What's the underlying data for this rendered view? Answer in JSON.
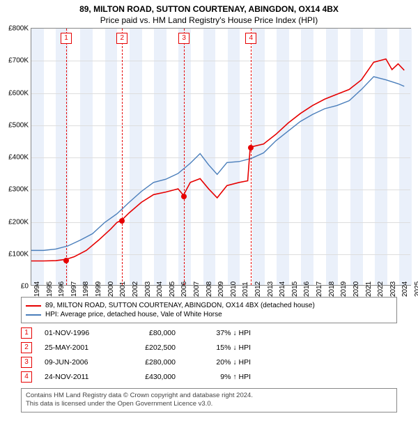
{
  "title_line1": "89, MILTON ROAD, SUTTON COURTENAY, ABINGDON, OX14 4BX",
  "title_line2": "Price paid vs. HM Land Registry's House Price Index (HPI)",
  "chart": {
    "type": "line",
    "xlim": [
      1994,
      2025
    ],
    "ylim": [
      0,
      800000
    ],
    "ytick_step": 100000,
    "yticks": [
      "£0",
      "£100K",
      "£200K",
      "£300K",
      "£400K",
      "£500K",
      "£600K",
      "£700K",
      "£800K"
    ],
    "xticks": [
      1994,
      1995,
      1996,
      1997,
      1998,
      1999,
      2000,
      2001,
      2002,
      2003,
      2004,
      2005,
      2006,
      2007,
      2008,
      2009,
      2010,
      2011,
      2012,
      2013,
      2014,
      2015,
      2016,
      2017,
      2018,
      2019,
      2020,
      2021,
      2022,
      2023,
      2024,
      2025
    ],
    "background_color": "#ffffff",
    "grid_color": "#dddddd",
    "band_color": "#eaf0fa",
    "bands": [
      [
        1994,
        1995
      ],
      [
        1996,
        1997
      ],
      [
        1998,
        1999
      ],
      [
        2000,
        2001
      ],
      [
        2002,
        2003
      ],
      [
        2004,
        2005
      ],
      [
        2006,
        2007
      ],
      [
        2008,
        2009
      ],
      [
        2010,
        2011
      ],
      [
        2012,
        2013
      ],
      [
        2014,
        2015
      ],
      [
        2016,
        2017
      ],
      [
        2018,
        2019
      ],
      [
        2020,
        2021
      ],
      [
        2022,
        2023
      ],
      [
        2024,
        2025
      ]
    ],
    "series": {
      "property": {
        "color": "#e60000",
        "width": 1.6,
        "data": [
          [
            1994.0,
            75000
          ],
          [
            1995.0,
            75000
          ],
          [
            1996.0,
            76000
          ],
          [
            1996.84,
            80000
          ],
          [
            1997.5,
            88000
          ],
          [
            1998.5,
            108000
          ],
          [
            1999.5,
            140000
          ],
          [
            2000.5,
            175000
          ],
          [
            2001.0,
            195000
          ],
          [
            2001.4,
            202500
          ],
          [
            2002.0,
            225000
          ],
          [
            2003.0,
            258000
          ],
          [
            2004.0,
            282000
          ],
          [
            2005.0,
            290000
          ],
          [
            2006.0,
            300000
          ],
          [
            2006.44,
            280000
          ],
          [
            2007.0,
            320000
          ],
          [
            2007.8,
            332000
          ],
          [
            2008.5,
            300000
          ],
          [
            2009.2,
            272000
          ],
          [
            2010.0,
            310000
          ],
          [
            2011.0,
            320000
          ],
          [
            2011.7,
            325000
          ],
          [
            2011.9,
            430000
          ],
          [
            2013.0,
            440000
          ],
          [
            2014.0,
            470000
          ],
          [
            2015.0,
            505000
          ],
          [
            2016.0,
            535000
          ],
          [
            2017.0,
            560000
          ],
          [
            2018.0,
            580000
          ],
          [
            2019.0,
            595000
          ],
          [
            2020.0,
            610000
          ],
          [
            2021.0,
            640000
          ],
          [
            2022.0,
            695000
          ],
          [
            2023.0,
            705000
          ],
          [
            2023.5,
            672000
          ],
          [
            2024.0,
            690000
          ],
          [
            2024.5,
            670000
          ]
        ]
      },
      "hpi": {
        "color": "#4a7ebb",
        "width": 1.4,
        "data": [
          [
            1994.0,
            108000
          ],
          [
            1995.0,
            108000
          ],
          [
            1996.0,
            112000
          ],
          [
            1997.0,
            122000
          ],
          [
            1998.0,
            140000
          ],
          [
            1999.0,
            160000
          ],
          [
            2000.0,
            195000
          ],
          [
            2001.0,
            222000
          ],
          [
            2002.0,
            258000
          ],
          [
            2003.0,
            292000
          ],
          [
            2004.0,
            320000
          ],
          [
            2005.0,
            330000
          ],
          [
            2006.0,
            348000
          ],
          [
            2007.0,
            380000
          ],
          [
            2007.8,
            410000
          ],
          [
            2008.5,
            375000
          ],
          [
            2009.2,
            345000
          ],
          [
            2010.0,
            382000
          ],
          [
            2011.0,
            385000
          ],
          [
            2012.0,
            395000
          ],
          [
            2013.0,
            412000
          ],
          [
            2014.0,
            450000
          ],
          [
            2015.0,
            480000
          ],
          [
            2016.0,
            510000
          ],
          [
            2017.0,
            532000
          ],
          [
            2018.0,
            550000
          ],
          [
            2019.0,
            560000
          ],
          [
            2020.0,
            575000
          ],
          [
            2021.0,
            610000
          ],
          [
            2022.0,
            650000
          ],
          [
            2023.0,
            640000
          ],
          [
            2024.0,
            628000
          ],
          [
            2024.5,
            620000
          ]
        ]
      }
    },
    "markers": [
      {
        "n": "1",
        "x": 1996.84,
        "y": 80000,
        "color": "#e60000"
      },
      {
        "n": "2",
        "x": 2001.4,
        "y": 202500,
        "color": "#e60000"
      },
      {
        "n": "3",
        "x": 2006.44,
        "y": 280000,
        "color": "#e60000"
      },
      {
        "n": "4",
        "x": 2011.9,
        "y": 430000,
        "color": "#e60000"
      }
    ]
  },
  "legend": {
    "items": [
      {
        "color": "#e60000",
        "label": "89, MILTON ROAD, SUTTON COURTENAY, ABINGDON, OX14 4BX (detached house)"
      },
      {
        "color": "#4a7ebb",
        "label": "HPI: Average price, detached house, Vale of White Horse"
      }
    ]
  },
  "table": {
    "rows": [
      {
        "n": "1",
        "color": "#e60000",
        "date": "01-NOV-1996",
        "price": "£80,000",
        "pct": "37%",
        "dir": "↓",
        "suffix": "HPI"
      },
      {
        "n": "2",
        "color": "#e60000",
        "date": "25-MAY-2001",
        "price": "£202,500",
        "pct": "15%",
        "dir": "↓",
        "suffix": "HPI"
      },
      {
        "n": "3",
        "color": "#e60000",
        "date": "09-JUN-2006",
        "price": "£280,000",
        "pct": "20%",
        "dir": "↓",
        "suffix": "HPI"
      },
      {
        "n": "4",
        "color": "#e60000",
        "date": "24-NOV-2011",
        "price": "£430,000",
        "pct": "9%",
        "dir": "↑",
        "suffix": "HPI"
      }
    ]
  },
  "footer_line1": "Contains HM Land Registry data © Crown copyright and database right 2024.",
  "footer_line2": "This data is licensed under the Open Government Licence v3.0."
}
